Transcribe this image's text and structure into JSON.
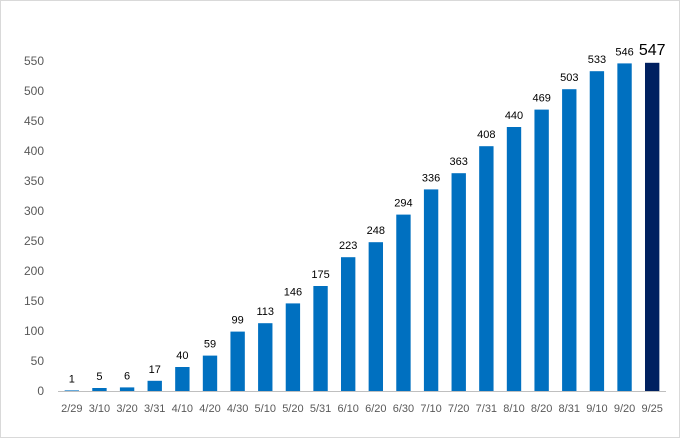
{
  "chart_data": {
    "type": "bar",
    "categories": [
      "2/29",
      "3/10",
      "3/20",
      "3/31",
      "4/10",
      "4/20",
      "4/30",
      "5/10",
      "5/20",
      "5/31",
      "6/10",
      "6/20",
      "6/30",
      "7/10",
      "7/20",
      "7/31",
      "8/10",
      "8/20",
      "8/31",
      "9/10",
      "9/20",
      "9/25"
    ],
    "values": [
      1,
      5,
      6,
      17,
      40,
      59,
      99,
      113,
      146,
      175,
      223,
      248,
      294,
      336,
      363,
      408,
      440,
      469,
      503,
      533,
      546,
      547
    ],
    "data_labels": [
      "1",
      "5",
      "6",
      "17",
      "40",
      "59",
      "99",
      "113",
      "146",
      "175",
      "223",
      "248",
      "294",
      "336",
      "363",
      "408",
      "440",
      "469",
      "503",
      "533",
      "546",
      "547"
    ],
    "y_ticks": [
      "0",
      "50",
      "100",
      "150",
      "200",
      "250",
      "300",
      "350",
      "400",
      "450",
      "500",
      "550"
    ],
    "ylim": [
      0,
      550
    ],
    "grid": false,
    "legend": "none",
    "highlight_index": 21,
    "colors": {
      "bar": "#0070c0",
      "highlight_bar": "#002060",
      "highlight_label": "#ff0000",
      "axis": "#bfbfbf"
    }
  }
}
